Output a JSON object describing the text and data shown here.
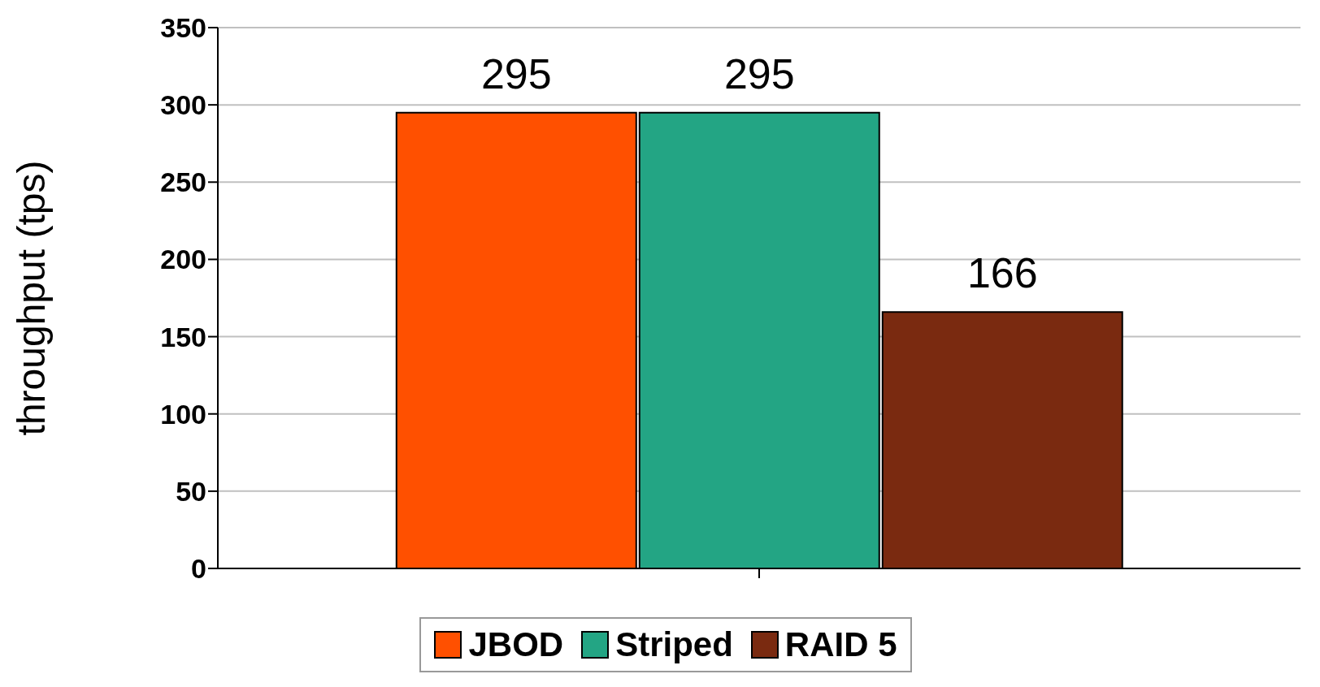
{
  "chart_data": {
    "type": "bar",
    "ylabel": "throughput (tps)",
    "categories": [
      null
    ],
    "series": [
      {
        "name": "JBOD",
        "color": "#ff5000",
        "values": [
          295
        ]
      },
      {
        "name": "Striped",
        "color": "#23a584",
        "values": [
          295
        ]
      },
      {
        "name": "RAID 5",
        "color": "#7a2a10",
        "values": [
          166
        ]
      }
    ],
    "ylim": [
      0,
      350
    ],
    "yticks": [
      0,
      50,
      100,
      150,
      200,
      250,
      300,
      350
    ],
    "grid": "y",
    "legend": "bottom",
    "data_labels": true
  }
}
